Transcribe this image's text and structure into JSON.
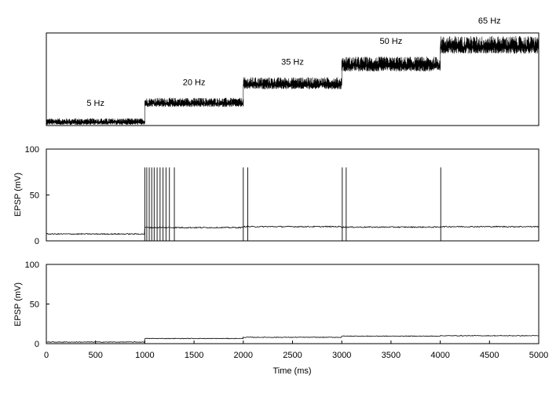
{
  "chart_data": [
    {
      "type": "line",
      "panel": "input-rate",
      "xlim": [
        0,
        5000
      ],
      "segments": [
        {
          "label": "5 Hz",
          "x": [
            0,
            1000
          ],
          "level": 1
        },
        {
          "label": "20 Hz",
          "x": [
            1000,
            2000
          ],
          "level": 2
        },
        {
          "label": "35 Hz",
          "x": [
            2000,
            3000
          ],
          "level": 3
        },
        {
          "label": "50 Hz",
          "x": [
            3000,
            4000
          ],
          "level": 4
        },
        {
          "label": "65 Hz",
          "x": [
            4000,
            5000
          ],
          "level": 5
        }
      ],
      "noise": "dense fluctuating trace, amplitude grows with rate"
    },
    {
      "type": "line",
      "panel": "epsp-spiking",
      "ylabel": "EPSP (mV)",
      "ylim": [
        0,
        100
      ],
      "yticks": [
        "0",
        "50",
        "100"
      ],
      "xlim": [
        0,
        5000
      ],
      "baseline": [
        {
          "x": [
            0,
            1000
          ],
          "y": 7.5
        },
        {
          "x": [
            1000,
            2000
          ],
          "y": 14.5
        },
        {
          "x": [
            2000,
            3000
          ],
          "y": 15.5
        },
        {
          "x": [
            3000,
            4000
          ],
          "y": 15.0
        },
        {
          "x": [
            4000,
            5000
          ],
          "y": 15.5
        }
      ],
      "spike_peak": 80,
      "spike_trough": 0,
      "spike_times": [
        1000,
        1020,
        1045,
        1070,
        1095,
        1125,
        1155,
        1185,
        1215,
        1250,
        1300,
        2000,
        2045,
        3005,
        3045,
        4005
      ]
    },
    {
      "type": "line",
      "panel": "epsp-subthreshold",
      "ylabel": "EPSP (mV)",
      "ylim": [
        0,
        100
      ],
      "yticks": [
        "0",
        "50",
        "100"
      ],
      "xlim": [
        0,
        5000
      ],
      "xlabel": "Time (ms)",
      "xticks": [
        "0",
        "500",
        "1000",
        "1500",
        "2000",
        "2500",
        "3000",
        "3500",
        "4000",
        "4500",
        "5000"
      ],
      "baseline": [
        {
          "x": [
            0,
            1000
          ],
          "y": 2
        },
        {
          "x": [
            1000,
            2000
          ],
          "y": 6.5
        },
        {
          "x": [
            2000,
            3000
          ],
          "y": 8
        },
        {
          "x": [
            3000,
            4000
          ],
          "y": 9.5
        },
        {
          "x": [
            4000,
            5000
          ],
          "y": 10
        }
      ]
    }
  ],
  "colors": {
    "trace": "#000000",
    "trace_fine": "#333333",
    "axes": "#000000"
  }
}
